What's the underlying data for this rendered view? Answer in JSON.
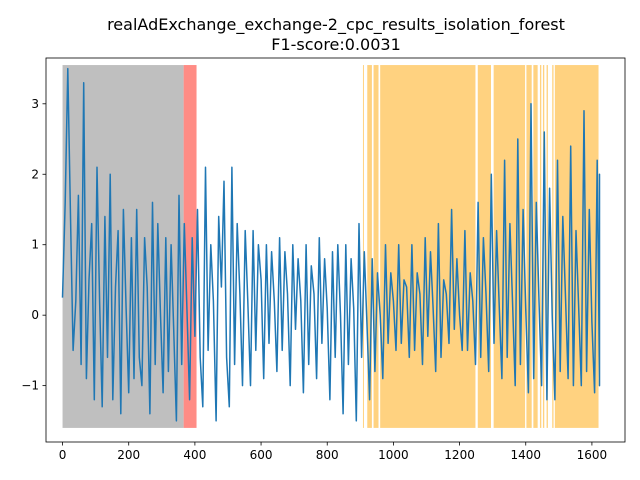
{
  "chart_data": {
    "type": "line",
    "title": "realAdExchange_exchange-2_cpc_results_isolation_forest",
    "subtitle": "F1-score:0.0031",
    "xlabel": "",
    "ylabel": "",
    "xlim": [
      -50,
      1700
    ],
    "ylim": [
      -1.8,
      3.65
    ],
    "xticks": [
      0,
      200,
      400,
      600,
      800,
      1000,
      1200,
      1400,
      1600
    ],
    "yticks": [
      -1,
      0,
      1,
      2,
      3
    ],
    "grid": false,
    "legend": "none",
    "line_color": "#1f77b4",
    "n_points": 1624,
    "series": [
      {
        "values_sampled_every_8": [
          0.25,
          1.6,
          3.5,
          1.4,
          -0.5,
          0.2,
          1.7,
          -0.7,
          3.3,
          -0.9,
          0.5,
          1.3,
          -1.2,
          2.1,
          0.2,
          -1.3,
          1.4,
          -0.6,
          2.0,
          -1.2,
          0.4,
          1.2,
          -1.4,
          1.5,
          0.1,
          -1.1,
          1.1,
          -0.9,
          1.5,
          -0.6,
          -1.0,
          1.1,
          0.4,
          -1.4,
          1.6,
          -0.7,
          1.3,
          0.0,
          -1.1,
          1.1,
          -0.8,
          1.0,
          -0.2,
          -1.5,
          1.7,
          -0.7,
          1.3,
          0.1,
          -1.2,
          1.1,
          -0.3,
          1.5,
          -0.6,
          -1.3,
          2.1,
          -0.5,
          1.0,
          0.2,
          -1.5,
          1.4,
          0.4,
          1.9,
          -0.6,
          -1.3,
          2.1,
          -0.7,
          1.3,
          0.3,
          -1.0,
          1.2,
          0.2,
          -1.0,
          1.2,
          -0.5,
          1.0,
          0.5,
          -0.9,
          1.0,
          -0.4,
          0.9,
          0.2,
          -0.8,
          1.1,
          -0.5,
          0.9,
          0.3,
          -1.0,
          1.0,
          -0.2,
          0.8,
          0.2,
          -1.1,
          1.0,
          -0.7,
          0.7,
          0.3,
          -0.9,
          1.1,
          -0.4,
          0.8,
          0.1,
          -1.2,
          0.9,
          -0.6,
          1.0,
          0.0,
          -1.4,
          1.0,
          -0.7,
          0.8,
          0.1,
          -1.5,
          1.3,
          -0.6,
          0.9,
          -0.1,
          -1.2,
          0.8,
          -0.8,
          0.6,
          0.0,
          -0.9,
          1.0,
          -0.4,
          0.6,
          0.2,
          -0.5,
          1.0,
          -0.4,
          0.5,
          0.4,
          -0.6,
          1.0,
          -0.5,
          0.6,
          0.3,
          -0.7,
          1.1,
          -0.3,
          0.9,
          0.1,
          -0.8,
          1.3,
          -0.6,
          0.5,
          0.3,
          -0.4,
          1.5,
          -0.2,
          0.8,
          0.0,
          -0.5,
          1.2,
          -0.5,
          0.6,
          0.2,
          -0.7,
          1.6,
          -0.6,
          1.1,
          0.3,
          -0.8,
          2.0,
          -0.4,
          1.2,
          0.1,
          -0.9,
          2.2,
          -0.6,
          1.3,
          0.2,
          -1.0,
          2.5,
          -0.7,
          1.5,
          0.1,
          -1.1,
          3.0,
          -0.9,
          1.6,
          0.2,
          -1.0,
          2.6,
          -1.2,
          1.8,
          0.0,
          -1.2,
          2.2,
          -0.8,
          1.4,
          0.3,
          -0.9,
          2.4,
          -1.0,
          1.2,
          0.1,
          -1.0,
          2.9,
          -0.8,
          1.5,
          -0.1,
          -1.1,
          2.2,
          -0.9,
          1.4,
          0.2,
          -0.6,
          1.7,
          -0.6,
          1.2,
          0.0,
          -1.0,
          2.0,
          -0.8,
          1.3,
          0.3,
          -1.0,
          1.5
        ]
      }
    ],
    "highlight_regions": [
      {
        "x0": 0,
        "x1": 366,
        "color": "#bfbfbf"
      },
      {
        "x0": 366,
        "x1": 405,
        "color": "#ff8c85"
      },
      {
        "x0": 908,
        "x1": 911,
        "color": "#ffd280"
      },
      {
        "x0": 921,
        "x1": 935,
        "color": "#ffd280"
      },
      {
        "x0": 940,
        "x1": 955,
        "color": "#ffd280"
      },
      {
        "x0": 960,
        "x1": 1248,
        "color": "#ffd280"
      },
      {
        "x0": 1255,
        "x1": 1295,
        "color": "#ffd280"
      },
      {
        "x0": 1303,
        "x1": 1398,
        "color": "#ffd280"
      },
      {
        "x0": 1402,
        "x1": 1418,
        "color": "#ffd280"
      },
      {
        "x0": 1423,
        "x1": 1436,
        "color": "#ffd280"
      },
      {
        "x0": 1443,
        "x1": 1447,
        "color": "#ffd280"
      },
      {
        "x0": 1452,
        "x1": 1456,
        "color": "#ffd280"
      },
      {
        "x0": 1463,
        "x1": 1467,
        "color": "#ffd280"
      },
      {
        "x0": 1480,
        "x1": 1484,
        "color": "#ffd280"
      },
      {
        "x0": 1488,
        "x1": 1620,
        "color": "#ffd280"
      }
    ],
    "highlight_ylim": [
      -1.6,
      3.55
    ]
  }
}
